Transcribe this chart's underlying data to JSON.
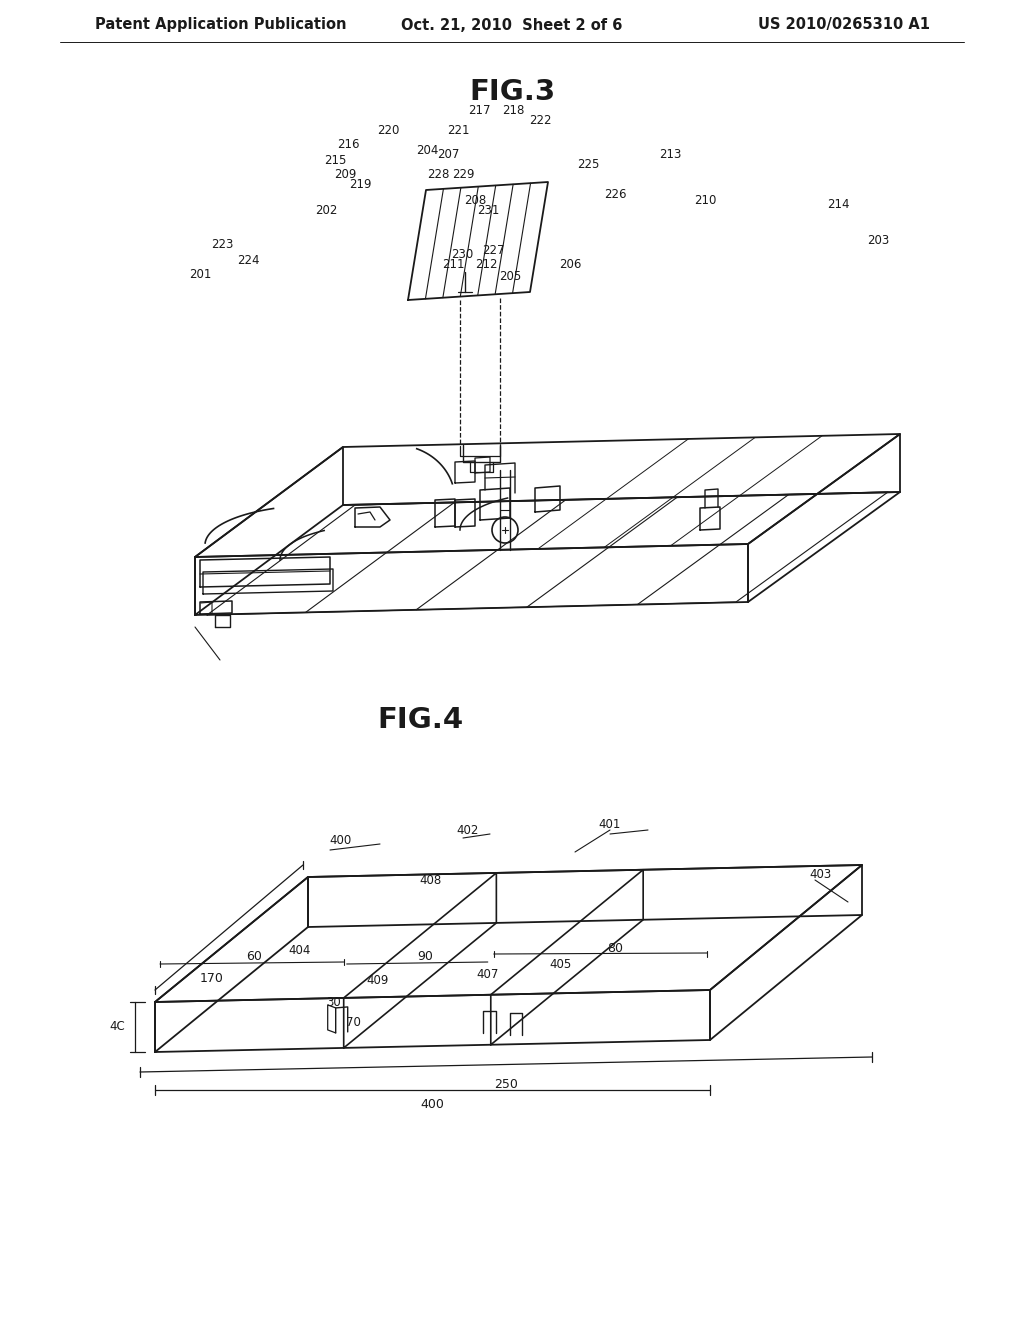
{
  "page_title_left": "Patent Application Publication",
  "page_title_center": "Oct. 21, 2010  Sheet 2 of 6",
  "page_title_right": "US 2010/0265310 A1",
  "fig3_title": "FIG.3",
  "fig4_title": "FIG.4",
  "bg_color": "#ffffff",
  "line_color": "#1a1a1a",
  "text_color": "#1a1a1a",
  "header_fontsize": 10.5,
  "fig_title_fontsize": 21,
  "label_fontsize": 9.0
}
